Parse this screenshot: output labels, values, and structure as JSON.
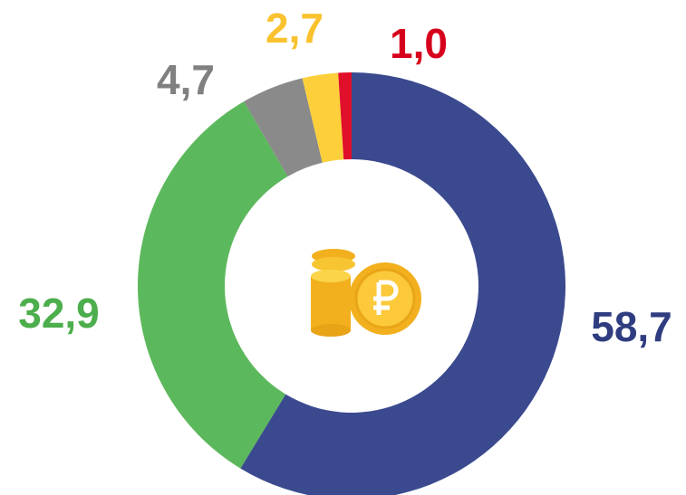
{
  "chart_data": {
    "type": "donut",
    "categories": [
      null,
      null,
      null,
      null,
      null
    ],
    "values": [
      58.7,
      32.9,
      4.7,
      2.7,
      1.0
    ],
    "value_labels": [
      "58,7",
      "32,9",
      "4,7",
      "2,7",
      "1,0"
    ],
    "colors": [
      "#3b4a8f",
      "#5cb85c",
      "#8a8a8a",
      "#fdd03b",
      "#e0102a"
    ],
    "label_colors": [
      "#2f3d80",
      "#4cae4c",
      "#808080",
      "#f9c22e",
      "#d6001c"
    ]
  }
}
